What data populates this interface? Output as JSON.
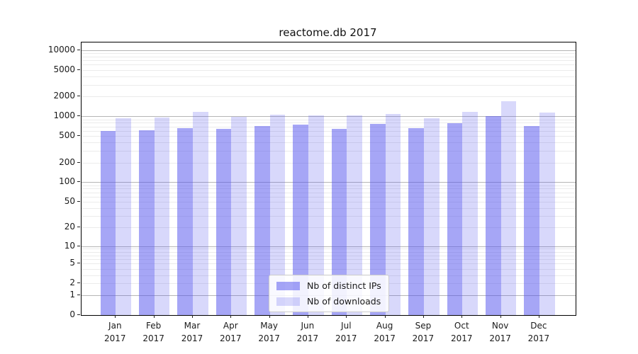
{
  "chart_data": {
    "type": "bar",
    "title": "reactome.db 2017",
    "yscale": "log1p",
    "ylim": [
      0,
      13000
    ],
    "yticks": [
      10000,
      5000,
      2000,
      1000,
      500,
      200,
      100,
      50,
      20,
      10,
      5,
      2,
      1,
      0
    ],
    "grid": "log-major-minor",
    "legend_position": "bottom-center",
    "categories": [
      "Jan",
      "Feb",
      "Mar",
      "Apr",
      "May",
      "Jun",
      "Jul",
      "Aug",
      "Sep",
      "Oct",
      "Nov",
      "Dec"
    ],
    "year_label": "2017",
    "series": [
      {
        "name": "Nb of distinct IPs",
        "color": "rgba(85,85,238,0.52)",
        "values": [
          600,
          620,
          660,
          640,
          720,
          740,
          650,
          770,
          660,
          780,
          1010,
          720
        ]
      },
      {
        "name": "Nb of downloads",
        "color": "rgba(85,85,238,0.23)",
        "values": [
          925,
          950,
          1160,
          980,
          1050,
          1030,
          1030,
          1090,
          945,
          1180,
          1700,
          1130
        ]
      }
    ]
  }
}
